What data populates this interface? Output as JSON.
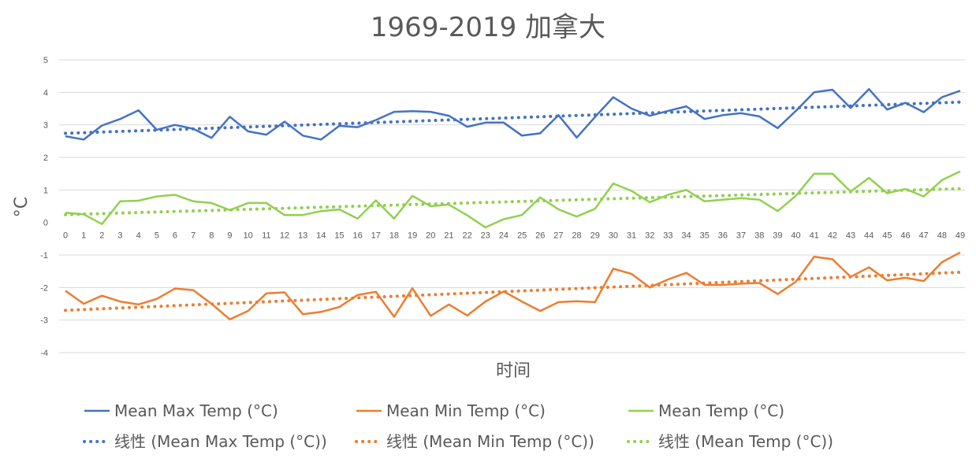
{
  "chart_data": {
    "type": "line",
    "title": "1969-2019 加拿大",
    "xlabel": "时间",
    "ylabel": "°C",
    "ylim": [
      -4,
      5
    ],
    "yticks": [
      "5",
      "4",
      "3",
      "2",
      "1",
      "0",
      "-1",
      "-2",
      "-3",
      "-4"
    ],
    "ytick_values": [
      5,
      4,
      3,
      2,
      1,
      0,
      -1,
      -2,
      -3,
      -4
    ],
    "grid": true,
    "legend_position": "bottom",
    "x": [
      0,
      1,
      2,
      3,
      4,
      5,
      6,
      7,
      8,
      9,
      10,
      11,
      12,
      13,
      14,
      15,
      16,
      17,
      18,
      19,
      20,
      21,
      22,
      23,
      24,
      25,
      26,
      27,
      28,
      29,
      30,
      31,
      32,
      33,
      34,
      35,
      36,
      37,
      38,
      39,
      40,
      41,
      42,
      43,
      44,
      45,
      46,
      47,
      48,
      49
    ],
    "xtick_labels": [
      "0",
      "1",
      "2",
      "3",
      "4",
      "5",
      "6",
      "7",
      "8",
      "9",
      "10",
      "11",
      "12",
      "13",
      "14",
      "15",
      "16",
      "17",
      "18",
      "19",
      "20",
      "21",
      "22",
      "23",
      "24",
      "25",
      "26",
      "27",
      "28",
      "29",
      "30",
      "31",
      "32",
      "33",
      "34",
      "35",
      "36",
      "37",
      "38",
      "39",
      "40",
      "41",
      "42",
      "43",
      "44",
      "45",
      "46",
      "47",
      "48",
      "49"
    ],
    "series": [
      {
        "name": "Mean Max Temp (°C)",
        "color": "#4472c4",
        "style": "solid",
        "values": [
          2.65,
          2.55,
          2.98,
          3.18,
          3.45,
          2.85,
          3.0,
          2.88,
          2.6,
          3.25,
          2.8,
          2.7,
          3.1,
          2.67,
          2.55,
          2.97,
          2.93,
          3.15,
          3.4,
          3.42,
          3.4,
          3.28,
          2.94,
          3.07,
          3.07,
          2.67,
          2.74,
          3.3,
          2.61,
          3.24,
          3.85,
          3.5,
          3.28,
          3.43,
          3.57,
          3.18,
          3.3,
          3.36,
          3.26,
          2.9,
          3.43,
          4.0,
          4.08,
          3.52,
          4.1,
          3.47,
          3.68,
          3.39,
          3.85,
          4.05
        ]
      },
      {
        "name": "Mean Min Temp (°C)",
        "color": "#ed7d31",
        "style": "solid",
        "values": [
          -2.1,
          -2.5,
          -2.25,
          -2.43,
          -2.52,
          -2.35,
          -2.03,
          -2.08,
          -2.5,
          -2.98,
          -2.72,
          -2.18,
          -2.15,
          -2.82,
          -2.75,
          -2.6,
          -2.23,
          -2.13,
          -2.9,
          -2.02,
          -2.87,
          -2.52,
          -2.86,
          -2.43,
          -2.12,
          -2.43,
          -2.72,
          -2.45,
          -2.42,
          -2.45,
          -1.42,
          -1.58,
          -2.0,
          -1.75,
          -1.55,
          -1.92,
          -1.92,
          -1.88,
          -1.86,
          -2.2,
          -1.82,
          -1.05,
          -1.13,
          -1.67,
          -1.38,
          -1.78,
          -1.7,
          -1.8,
          -1.22,
          -0.92
        ]
      },
      {
        "name": "Mean Temp (°C)",
        "color": "#92d050",
        "style": "solid",
        "values": [
          0.3,
          0.25,
          -0.05,
          0.65,
          0.67,
          0.8,
          0.85,
          0.65,
          0.6,
          0.38,
          0.6,
          0.6,
          0.23,
          0.23,
          0.35,
          0.4,
          0.12,
          0.68,
          0.12,
          0.82,
          0.5,
          0.55,
          0.22,
          -0.15,
          0.1,
          0.23,
          0.77,
          0.4,
          0.18,
          0.42,
          1.2,
          0.97,
          0.62,
          0.85,
          1.0,
          0.65,
          0.7,
          0.75,
          0.7,
          0.35,
          0.82,
          1.5,
          1.5,
          0.95,
          1.37,
          0.9,
          1.03,
          0.8,
          1.3,
          1.57
        ]
      }
    ],
    "trendlines": [
      {
        "name": "线性 (Mean Max Temp (°C))",
        "color": "#4472c4",
        "style": "dotted",
        "start": 2.74,
        "end": 3.7
      },
      {
        "name": "线性 (Mean Min Temp (°C))",
        "color": "#ed7d31",
        "style": "dotted",
        "start": -2.7,
        "end": -1.53
      },
      {
        "name": "线性 (Mean Temp (°C))",
        "color": "#92d050",
        "style": "dotted",
        "start": 0.24,
        "end": 1.04
      }
    ]
  }
}
